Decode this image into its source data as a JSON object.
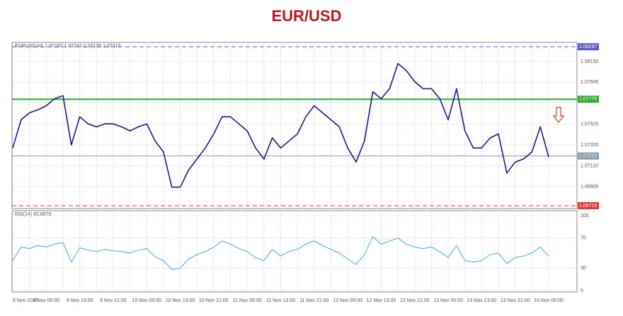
{
  "chart_data": [
    {
      "type": "line",
      "title": "EUR/USD",
      "header": "EURUSD,H1 1.07167 1.07242 1.07135 1.07210",
      "categories": [
        "6 Nov 2015",
        null,
        null,
        null,
        "9 Nov 05:00",
        null,
        null,
        null,
        "9 Nov 13:00",
        null,
        null,
        null,
        "9 Nov 21:00",
        null,
        null,
        null,
        "10 Nov 05:00",
        null,
        null,
        null,
        "10 Nov 13:00",
        null,
        null,
        null,
        "10 Nov 21:00",
        null,
        null,
        null,
        "11 Nov 05:00",
        null,
        null,
        null,
        "11 Nov 13:00",
        null,
        null,
        null,
        "11 Nov 21:00",
        null,
        null,
        null,
        "12 Nov 05:00",
        null,
        null,
        null,
        "12 Nov 13:00",
        null,
        null,
        null,
        "12 Nov 21:00",
        null,
        null,
        null,
        "13 Nov 05:00",
        null,
        null,
        null,
        "13 Nov 13:00",
        null,
        null,
        null,
        "13 Nov 21:00",
        null,
        null,
        null,
        "16 Nov 05:00"
      ],
      "series": [
        {
          "name": "EURUSD,H1",
          "color": "#1b1b8c",
          "values": [
            1.0729,
            1.0757,
            1.0764,
            1.0767,
            1.0771,
            1.0778,
            1.0781,
            1.0732,
            1.076,
            1.0753,
            1.075,
            1.0753,
            1.0753,
            1.075,
            1.0746,
            1.075,
            1.0753,
            1.0736,
            1.0725,
            1.069,
            1.069,
            1.0707,
            1.0718,
            1.0729,
            1.0743,
            1.076,
            1.076,
            1.0753,
            1.0746,
            1.0729,
            1.0718,
            1.0739,
            1.0729,
            1.0736,
            1.0743,
            1.076,
            1.0771,
            1.0764,
            1.0757,
            1.075,
            1.0729,
            1.0715,
            1.0736,
            1.0785,
            1.0778,
            1.0788,
            1.0813,
            1.0806,
            1.0795,
            1.0788,
            1.0788,
            1.0778,
            1.0757,
            1.0788,
            1.0746,
            1.0729,
            1.0729,
            1.0739,
            1.0743,
            1.0704,
            1.0715,
            1.0718,
            1.0725,
            1.075,
            1.072
          ]
        }
      ],
      "ylim": [
        1.06701,
        1.08326
      ],
      "yticks": [
        {
          "value": 1.0815,
          "label": "1.08150"
        },
        1.07945,
        1.07525,
        {
          "value": 1.0732,
          "label": "1.07320"
        },
        {
          "value": 1.0711,
          "label": "1.07110"
        },
        1.06905
      ],
      "levels": [
        {
          "value": 1.08297,
          "color": "#5a5ad0"
        },
        {
          "value": 1.07775,
          "color": "#2eaa2e"
        },
        {
          "value": 1.0721,
          "label": "1.07210",
          "color": "#8899aa"
        },
        {
          "value": 1.06715,
          "color": "#e03a2a"
        }
      ],
      "grid": true
    },
    {
      "type": "line",
      "header": "RSI(14) 45.8879",
      "series": [
        {
          "name": "RSI(14)",
          "color": "#49a9e0",
          "values": [
            40,
            58,
            56,
            60,
            58,
            62,
            64,
            38,
            57,
            54,
            52,
            55,
            53,
            52,
            50,
            54,
            56,
            45,
            40,
            28,
            30,
            42,
            48,
            52,
            58,
            66,
            62,
            56,
            52,
            44,
            40,
            55,
            46,
            52,
            55,
            62,
            66,
            60,
            55,
            50,
            42,
            35,
            48,
            72,
            62,
            66,
            70,
            62,
            58,
            56,
            58,
            52,
            44,
            60,
            40,
            38,
            40,
            48,
            50,
            36,
            44,
            46,
            50,
            58,
            46
          ]
        }
      ],
      "ylim": [
        0,
        100
      ],
      "yticks": [
        100,
        70,
        30,
        0
      ],
      "grid": true
    }
  ]
}
